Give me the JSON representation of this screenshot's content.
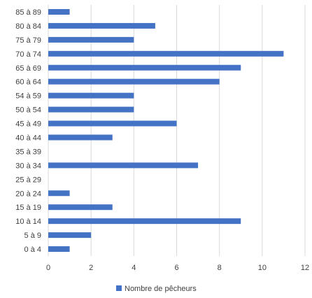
{
  "chart_data": {
    "type": "bar",
    "orientation": "horizontal",
    "categories": [
      "0 à 4",
      "5 à 9",
      "10 à 14",
      "15 à 19",
      "20 à 24",
      "25 à 29",
      "30 à 34",
      "35 à 39",
      "40 à 44",
      "45 à 49",
      "50 à 54",
      "54 à 59",
      "60 à 64",
      "65 à 69",
      "70 à 74",
      "75 à 79",
      "80 à 84",
      "85 à 89"
    ],
    "series": [
      {
        "name": "Nombre de pêcheurs",
        "values": [
          1,
          2,
          9,
          3,
          1,
          0,
          7,
          0,
          3,
          6,
          4,
          4,
          8,
          9,
          11,
          4,
          5,
          1
        ],
        "color": "#4472c4"
      }
    ],
    "xlim": [
      0,
      12
    ],
    "xticks": [
      0,
      2,
      4,
      6,
      8,
      10,
      12
    ],
    "grid": "vertical",
    "legend_position": "bottom",
    "title": "",
    "xlabel": "",
    "ylabel": ""
  }
}
